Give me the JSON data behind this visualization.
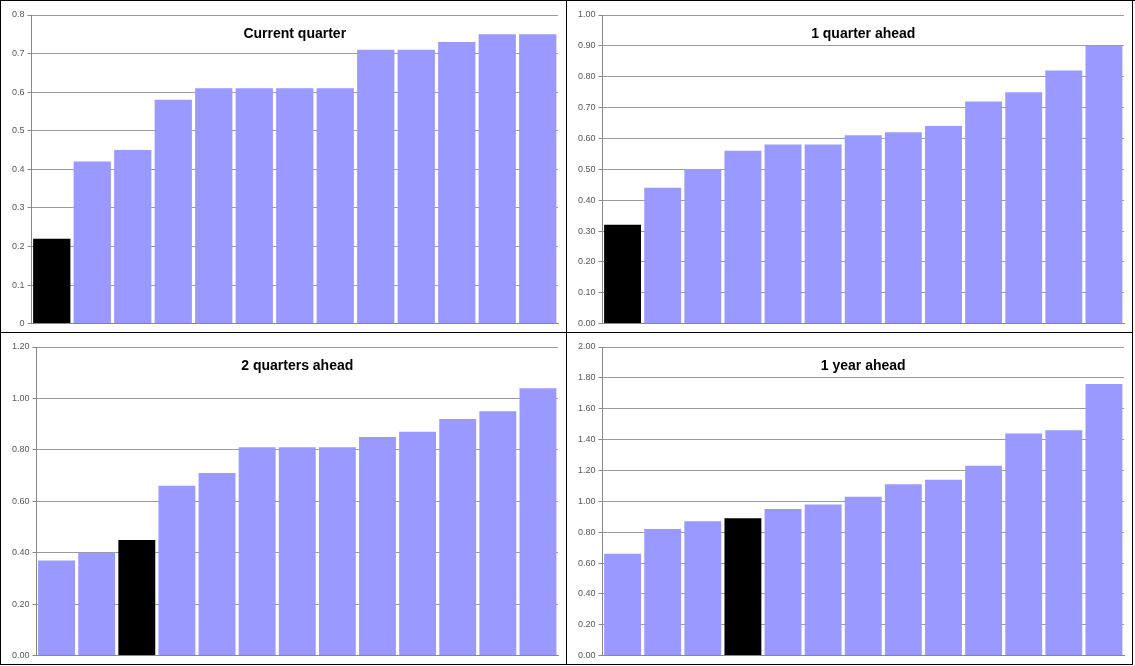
{
  "chart_data": [
    {
      "type": "bar",
      "title": "Current quarter",
      "categories": [
        null,
        null,
        null,
        null,
        null,
        null,
        null,
        null,
        null,
        null,
        null,
        null,
        null
      ],
      "values": [
        0.22,
        0.42,
        0.45,
        0.58,
        0.61,
        0.61,
        0.61,
        0.61,
        0.71,
        0.71,
        0.73,
        0.75,
        0.75
      ],
      "colors": [
        "#000000",
        "#9999ff",
        "#9999ff",
        "#9999ff",
        "#9999ff",
        "#9999ff",
        "#9999ff",
        "#9999ff",
        "#9999ff",
        "#9999ff",
        "#9999ff",
        "#9999ff",
        "#9999ff"
      ],
      "ylim": [
        0,
        0.8
      ],
      "yticks": [
        0,
        0.1,
        0.2,
        0.3,
        0.4,
        0.5,
        0.6,
        0.7,
        0.8
      ],
      "grid": "y",
      "legend": false,
      "tick_labels": "y"
    },
    {
      "type": "bar",
      "title": "1 quarter ahead",
      "categories": [
        null,
        null,
        null,
        null,
        null,
        null,
        null,
        null,
        null,
        null,
        null,
        null,
        null
      ],
      "values": [
        0.32,
        0.44,
        0.5,
        0.56,
        0.58,
        0.58,
        0.61,
        0.62,
        0.64,
        0.72,
        0.75,
        0.82,
        0.9
      ],
      "colors": [
        "#000000",
        "#9999ff",
        "#9999ff",
        "#9999ff",
        "#9999ff",
        "#9999ff",
        "#9999ff",
        "#9999ff",
        "#9999ff",
        "#9999ff",
        "#9999ff",
        "#9999ff",
        "#9999ff"
      ],
      "ylim": [
        0,
        1
      ],
      "yticks": [
        {
          "value": 0,
          "label": "0.00"
        },
        {
          "value": 0.1,
          "label": "0.10"
        },
        {
          "value": 0.2,
          "label": "0.20"
        },
        {
          "value": 0.3,
          "label": "0.30"
        },
        {
          "value": 0.4,
          "label": "0.40"
        },
        {
          "value": 0.5,
          "label": "0.50"
        },
        {
          "value": 0.6,
          "label": "0.60"
        },
        {
          "value": 0.7,
          "label": "0.70"
        },
        {
          "value": 0.8,
          "label": "0.80"
        },
        {
          "value": 0.9,
          "label": "0.90"
        },
        {
          "value": 1,
          "label": "1.00"
        }
      ],
      "grid": "y",
      "legend": false,
      "tick_labels": "y"
    },
    {
      "type": "bar",
      "title": "2 quarters ahead",
      "categories": [
        null,
        null,
        null,
        null,
        null,
        null,
        null,
        null,
        null,
        null,
        null,
        null,
        null
      ],
      "values": [
        0.37,
        0.4,
        0.45,
        0.66,
        0.71,
        0.81,
        0.81,
        0.81,
        0.85,
        0.87,
        0.92,
        0.95,
        1.04
      ],
      "colors": [
        "#9999ff",
        "#9999ff",
        "#000000",
        "#9999ff",
        "#9999ff",
        "#9999ff",
        "#9999ff",
        "#9999ff",
        "#9999ff",
        "#9999ff",
        "#9999ff",
        "#9999ff",
        "#9999ff"
      ],
      "ylim": [
        0,
        1.2
      ],
      "yticks": [
        {
          "value": 0,
          "label": "0.00"
        },
        {
          "value": 0.2,
          "label": "0.20"
        },
        {
          "value": 0.4,
          "label": "0.40"
        },
        {
          "value": 0.6,
          "label": "0.60"
        },
        {
          "value": 0.8,
          "label": "0.80"
        },
        {
          "value": 1,
          "label": "1.00"
        },
        {
          "value": 1.2,
          "label": "1.20"
        }
      ],
      "grid": "y",
      "legend": false,
      "tick_labels": "y"
    },
    {
      "type": "bar",
      "title": "1 year ahead",
      "categories": [
        null,
        null,
        null,
        null,
        null,
        null,
        null,
        null,
        null,
        null,
        null,
        null,
        null
      ],
      "values": [
        0.66,
        0.82,
        0.87,
        0.89,
        0.95,
        0.98,
        1.03,
        1.11,
        1.14,
        1.23,
        1.44,
        1.46,
        1.76
      ],
      "colors": [
        "#9999ff",
        "#9999ff",
        "#9999ff",
        "#000000",
        "#9999ff",
        "#9999ff",
        "#9999ff",
        "#9999ff",
        "#9999ff",
        "#9999ff",
        "#9999ff",
        "#9999ff",
        "#9999ff"
      ],
      "ylim": [
        0,
        2
      ],
      "yticks": [
        {
          "value": 0,
          "label": "0.00"
        },
        {
          "value": 0.2,
          "label": "0.20"
        },
        {
          "value": 0.4,
          "label": "0.40"
        },
        {
          "value": 0.6,
          "label": "0.60"
        },
        {
          "value": 0.8,
          "label": "0.80"
        },
        {
          "value": 1,
          "label": "1.00"
        },
        {
          "value": 1.2,
          "label": "1.20"
        },
        {
          "value": 1.4,
          "label": "1.40"
        },
        {
          "value": 1.6,
          "label": "1.60"
        },
        {
          "value": 1.8,
          "label": "1.80"
        },
        {
          "value": 2,
          "label": "2.00"
        }
      ],
      "grid": "y",
      "legend": false,
      "tick_labels": "y"
    }
  ]
}
